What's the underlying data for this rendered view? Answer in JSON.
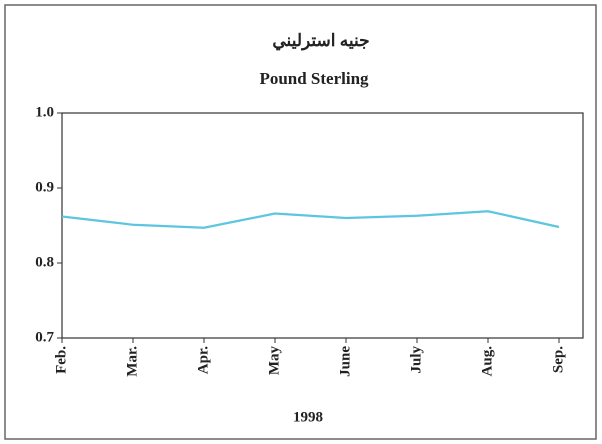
{
  "chart_data": {
    "type": "line",
    "title": "جنيه استرليني",
    "subtitle": "Pound Sterling",
    "x_label": "1998",
    "categories": [
      "Feb.",
      "Mar.",
      "Apr.",
      "May",
      "June",
      "July",
      "Aug.",
      "Sep."
    ],
    "series": [
      {
        "name": "Pound Sterling",
        "color": "#5cc6df",
        "values": [
          0.862,
          0.851,
          0.847,
          0.866,
          0.86,
          0.863,
          0.869,
          0.848
        ]
      }
    ],
    "ylim": [
      0.7,
      1
    ],
    "yticks": [
      0.7,
      0.8,
      0.9,
      {
        "value": 1,
        "label": "1.0"
      }
    ]
  }
}
